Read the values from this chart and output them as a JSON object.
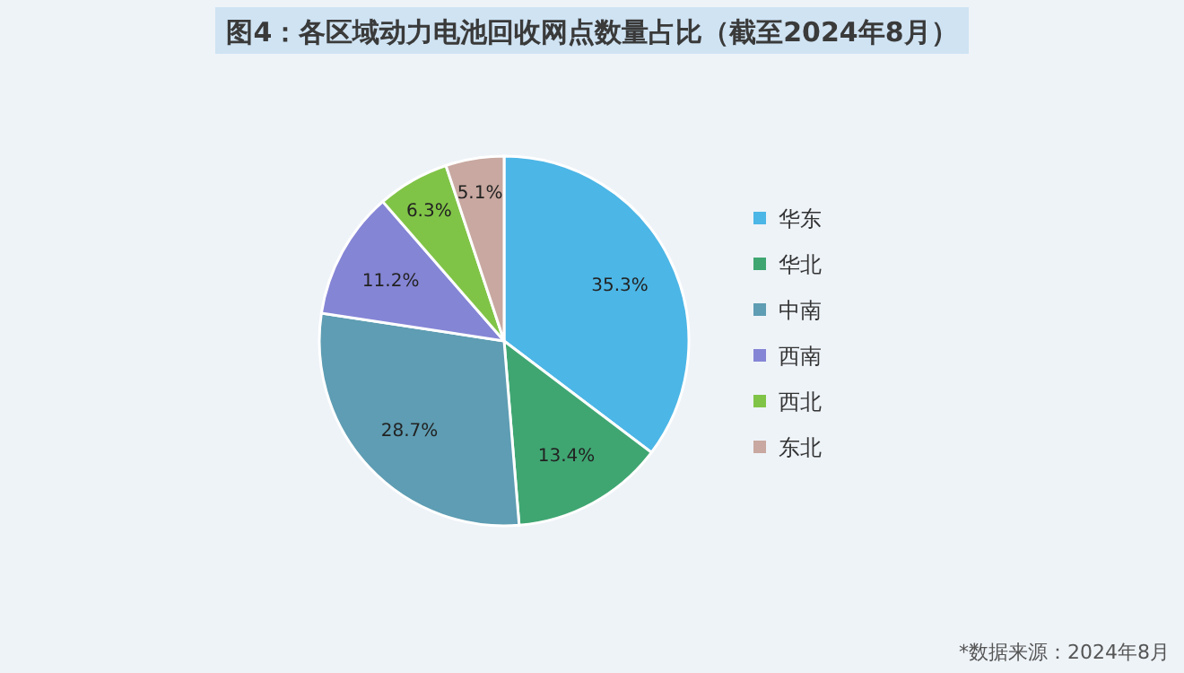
{
  "chart_data": {
    "type": "pie",
    "title": "图4：各区域动力电池回收网点数量占比（截至2024年8月）",
    "categories": [
      "华东",
      "华北",
      "中南",
      "西南",
      "西北",
      "东北"
    ],
    "values": [
      35.3,
      13.4,
      28.7,
      11.2,
      6.3,
      5.1
    ],
    "colors": [
      "#4cb6e6",
      "#3fa672",
      "#5e9db3",
      "#8585d6",
      "#80c447",
      "#c8a8a0"
    ],
    "value_labels": [
      "35.3%",
      "13.4%",
      "28.7%",
      "11.2%",
      "6.3%",
      "5.1%"
    ],
    "legend": "right",
    "annotations": [
      "*数据来源：2024年8月"
    ]
  }
}
